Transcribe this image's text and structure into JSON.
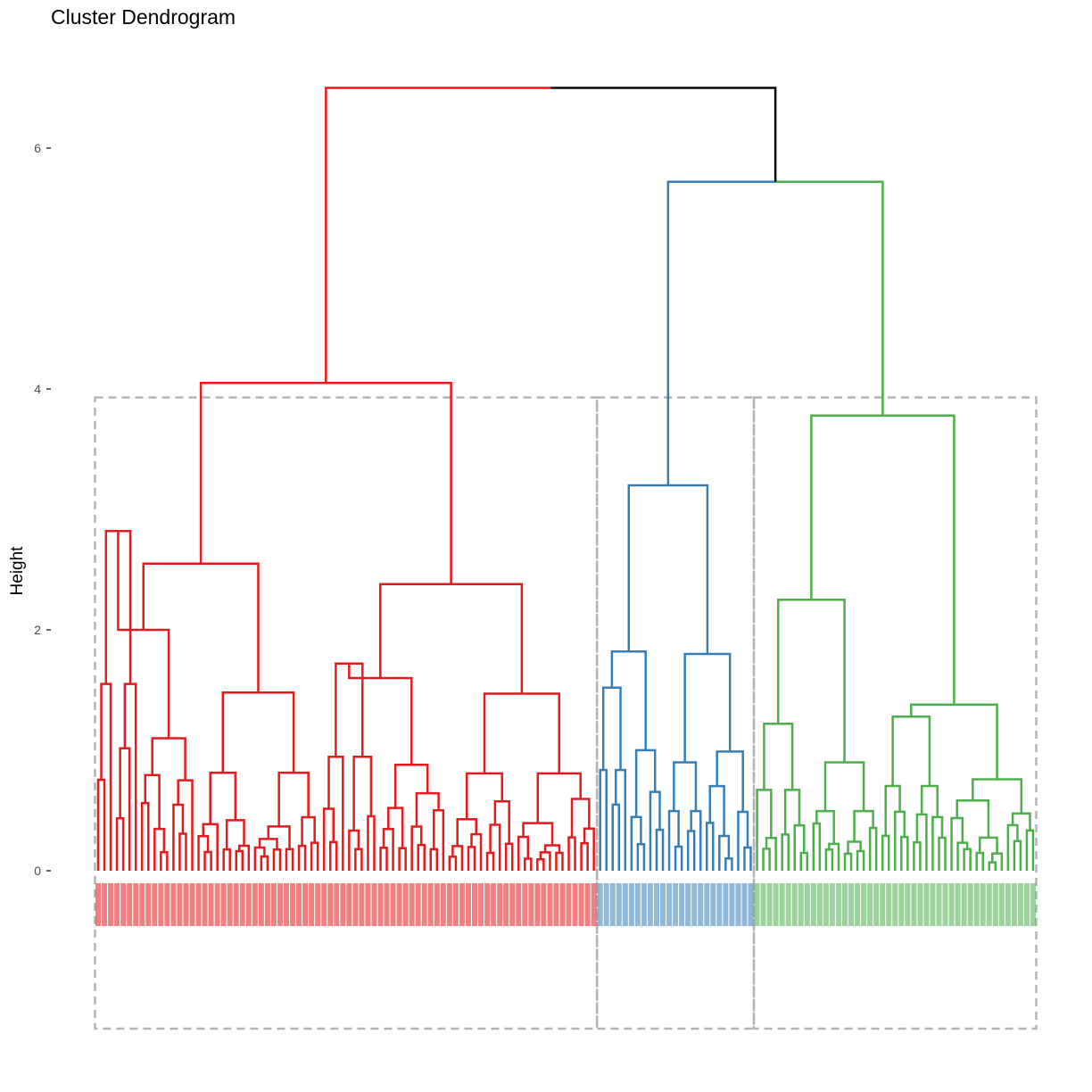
{
  "title": "Cluster Dendrogram",
  "chart_data": {
    "type": "dendrogram",
    "title": "Cluster Dendrogram",
    "ylabel": "Height",
    "xlabel": "",
    "ylim": [
      0,
      6.5
    ],
    "y_ticks": [
      0,
      2,
      4,
      6
    ],
    "y_tick_labels": [
      "0",
      "2",
      "4",
      "6"
    ],
    "n_leaves": 150,
    "root_height": 6.5,
    "clusters": [
      {
        "id": 1,
        "color": "#E41A1C",
        "size": 80,
        "merge_height": 4.05,
        "sub_merges": [
          2.55,
          2.38,
          2.0,
          1.6,
          1.48,
          1.47,
          2.82,
          1.72
        ]
      },
      {
        "id": 2,
        "color": "#377EB8",
        "size": 25,
        "merge_height": 3.2,
        "sub_merges": [
          1.82,
          1.8,
          1.52,
          0.9
        ]
      },
      {
        "id": 3,
        "color": "#4DAF4A",
        "size": 45,
        "merge_height": 3.78,
        "sub_merges": [
          2.25,
          1.38,
          1.22,
          1.28,
          0.9
        ]
      }
    ],
    "top_merges": [
      {
        "height": 5.72,
        "joins": [
          "cluster-2",
          "cluster-3"
        ]
      },
      {
        "height": 6.5,
        "joins": [
          "cluster-1",
          "cluster-2+3"
        ]
      }
    ],
    "rect_boxes": true,
    "box_color": "#b3b3b3"
  },
  "colors": {
    "cluster1": "#E41A1C",
    "cluster2": "#377EB8",
    "cluster3": "#4DAF4A",
    "root": "#000000",
    "box": "#b3b3b3"
  }
}
